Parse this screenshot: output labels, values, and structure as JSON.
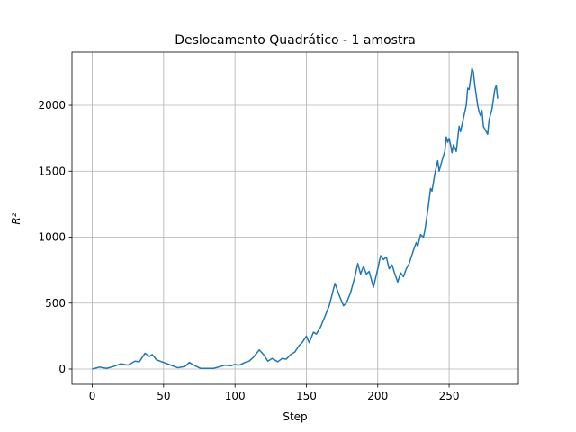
{
  "chart_data": {
    "type": "line",
    "title": "Deslocamento Quadrático - 1 amostra",
    "xlabel": "Step",
    "ylabel": "R²",
    "x": [
      0,
      5,
      10,
      15,
      20,
      25,
      30,
      33,
      37,
      40,
      42,
      45,
      50,
      55,
      60,
      65,
      68,
      72,
      76,
      80,
      85,
      90,
      93,
      97,
      100,
      103,
      107,
      110,
      113,
      117,
      120,
      123,
      126,
      130,
      133,
      136,
      139,
      142,
      145,
      147,
      150,
      152,
      155,
      157,
      160,
      163,
      166,
      170,
      173,
      176,
      178,
      181,
      184,
      186,
      188,
      190,
      192,
      194,
      197,
      200,
      202,
      204,
      206,
      208,
      210,
      212,
      214,
      216,
      218,
      220,
      222,
      225,
      227,
      228,
      230,
      232,
      233,
      235,
      237,
      238,
      240,
      242,
      243,
      245,
      247,
      248,
      249,
      250,
      251,
      252,
      253,
      255,
      257,
      258,
      260,
      262,
      263,
      264,
      266,
      267,
      268,
      270,
      271,
      272,
      273,
      274,
      275,
      277,
      278,
      280,
      282,
      283,
      284
    ],
    "series": [
      {
        "color": "#1f77b4",
        "values": [
          0,
          15,
          5,
          20,
          40,
          30,
          60,
          55,
          120,
          95,
          110,
          70,
          50,
          30,
          10,
          20,
          50,
          25,
          5,
          5,
          5,
          20,
          30,
          25,
          35,
          30,
          50,
          60,
          90,
          145,
          110,
          60,
          80,
          55,
          80,
          75,
          110,
          130,
          180,
          200,
          250,
          200,
          280,
          265,
          320,
          400,
          480,
          650,
          560,
          480,
          500,
          580,
          700,
          800,
          720,
          780,
          720,
          740,
          620,
          760,
          860,
          830,
          850,
          760,
          790,
          720,
          660,
          730,
          700,
          760,
          800,
          900,
          960,
          930,
          1020,
          1000,
          1050,
          1200,
          1370,
          1350,
          1480,
          1580,
          1500,
          1580,
          1650,
          1760,
          1720,
          1750,
          1700,
          1640,
          1700,
          1650,
          1840,
          1800,
          1900,
          2000,
          2130,
          2120,
          2280,
          2250,
          2150,
          2000,
          1950,
          1920,
          1960,
          1840,
          1820,
          1780,
          1890,
          1970,
          2120,
          2150,
          2050
        ]
      }
    ],
    "xlim": [
      -14.2,
      298.5
    ],
    "ylim": [
      -116,
      2403
    ],
    "xticks": [
      0,
      50,
      100,
      150,
      200,
      250
    ],
    "yticks": [
      0,
      500,
      1000,
      1500,
      2000
    ],
    "grid": true
  }
}
